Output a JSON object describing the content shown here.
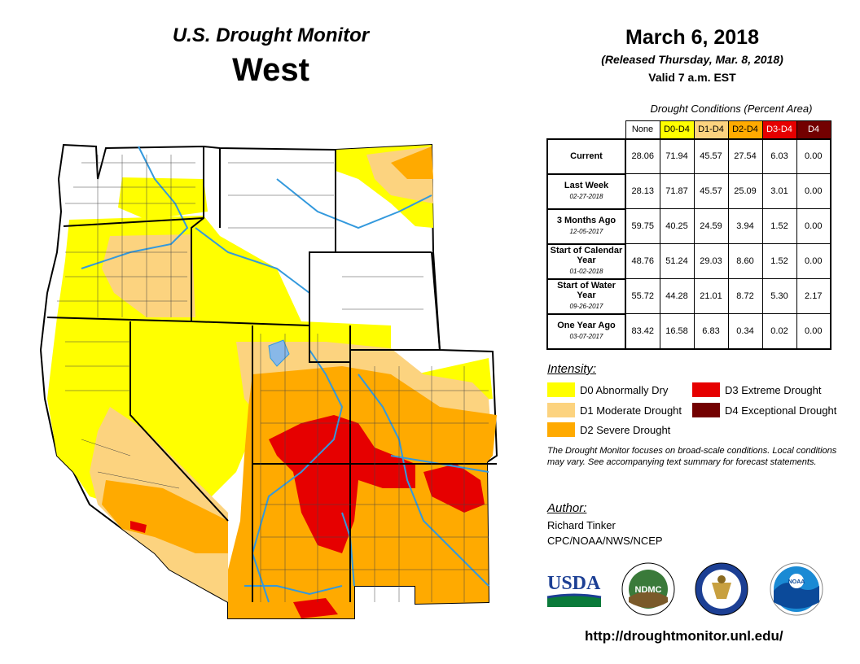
{
  "header": {
    "subtitle": "U.S. Drought Monitor",
    "region": "West",
    "date": "March 6, 2018",
    "released": "(Released Thursday, Mar. 8, 2018)",
    "valid": "Valid 7 a.m. EST"
  },
  "table": {
    "caption": "Drought Conditions (Percent Area)",
    "columns": [
      "None",
      "D0-D4",
      "D1-D4",
      "D2-D4",
      "D3-D4",
      "D4"
    ],
    "column_colors": [
      "#ffffff",
      "#ffff00",
      "#fcd37f",
      "#ffaa00",
      "#e60000",
      "#730000"
    ],
    "rows": [
      {
        "label": "Current",
        "date": "",
        "values": [
          "28.06",
          "71.94",
          "45.57",
          "27.54",
          "6.03",
          "0.00"
        ]
      },
      {
        "label": "Last Week",
        "date": "02-27-2018",
        "values": [
          "28.13",
          "71.87",
          "45.57",
          "25.09",
          "3.01",
          "0.00"
        ]
      },
      {
        "label": "3 Months Ago",
        "date": "12-05-2017",
        "values": [
          "59.75",
          "40.25",
          "24.59",
          "3.94",
          "1.52",
          "0.00"
        ]
      },
      {
        "label": "Start of Calendar Year",
        "date": "01-02-2018",
        "values": [
          "48.76",
          "51.24",
          "29.03",
          "8.60",
          "1.52",
          "0.00"
        ]
      },
      {
        "label": "Start of Water Year",
        "date": "09-26-2017",
        "values": [
          "55.72",
          "44.28",
          "21.01",
          "8.72",
          "5.30",
          "2.17"
        ]
      },
      {
        "label": "One Year Ago",
        "date": "03-07-2017",
        "values": [
          "83.42",
          "16.58",
          "6.83",
          "0.34",
          "0.02",
          "0.00"
        ]
      }
    ]
  },
  "intensity": {
    "title": "Intensity:",
    "items": [
      {
        "label": "D0 Abnormally Dry",
        "color": "#ffff00"
      },
      {
        "label": "D1 Moderate Drought",
        "color": "#fcd37f"
      },
      {
        "label": "D2 Severe Drought",
        "color": "#ffaa00"
      },
      {
        "label": "D3 Extreme Drought",
        "color": "#e60000"
      },
      {
        "label": "D4 Exceptional Drought",
        "color": "#730000"
      }
    ]
  },
  "note": "The Drought Monitor focuses on broad-scale conditions. Local conditions may vary. See accompanying text summary for forecast statements.",
  "author": {
    "title": "Author:",
    "name": "Richard Tinker",
    "org": "CPC/NOAA/NWS/NCEP"
  },
  "logos": {
    "usda": "USDA",
    "ndmc": "NDMC",
    "noaa": "NOAA"
  },
  "url": "http://droughtmonitor.unl.edu/",
  "map": {
    "colors": {
      "d0": "#ffff00",
      "d1": "#fcd37f",
      "d2": "#ffaa00",
      "d3": "#e60000",
      "river": "#3399dd",
      "lake": "#88b8e8"
    }
  }
}
